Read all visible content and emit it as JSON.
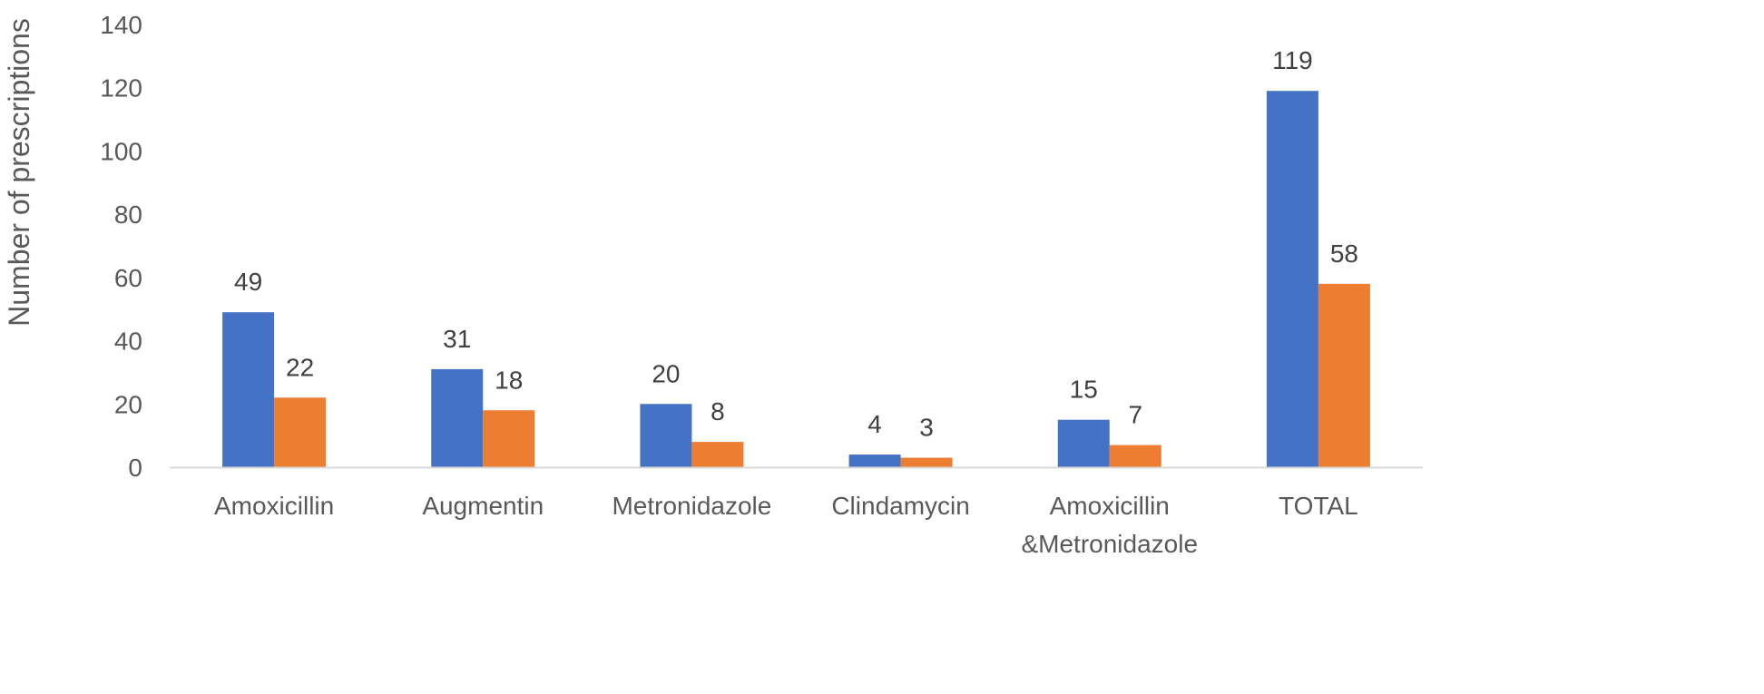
{
  "chart_data": {
    "type": "bar",
    "title": "",
    "xlabel": "",
    "ylabel": "Number of prescriptions",
    "ylim": [
      0,
      140
    ],
    "yticks": [
      0,
      20,
      40,
      60,
      80,
      100,
      120,
      140
    ],
    "grid": false,
    "legend": "none",
    "categories": [
      [
        "Amoxicillin"
      ],
      [
        "Augmentin"
      ],
      [
        "Metronidazole"
      ],
      [
        "Clindamycin"
      ],
      [
        "Amoxicillin",
        "&Metronidazole"
      ],
      [
        "TOTAL"
      ]
    ],
    "series": [
      {
        "color": "#4472C4",
        "values": [
          49,
          31,
          20,
          4,
          15,
          119
        ]
      },
      {
        "color": "#ED7D31",
        "values": [
          22,
          18,
          8,
          3,
          7,
          58
        ]
      }
    ],
    "axis_color": "#D9D9D9"
  }
}
